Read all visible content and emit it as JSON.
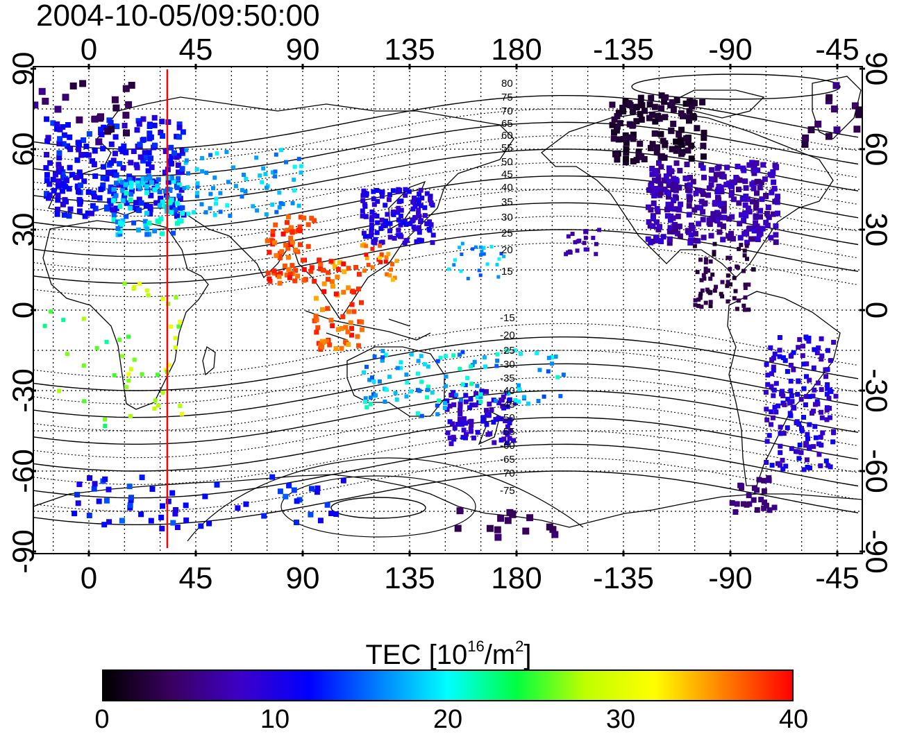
{
  "title": "2004-10-05/09:50:00",
  "map": {
    "top_lon_labels": [
      "0",
      "45",
      "90",
      "135",
      "180",
      "-135",
      "-90",
      "-45"
    ],
    "bottom_lon_labels": [
      "0",
      "45",
      "90",
      "135",
      "180",
      "-135",
      "-90",
      "-45"
    ],
    "left_lat_labels": [
      "90",
      "60",
      "30",
      "0",
      "-30",
      "-60",
      "-90"
    ],
    "right_lat_labels": [
      "90",
      "60",
      "30",
      "0",
      "-30",
      "-60",
      "-90"
    ],
    "north_contour_labels": [
      "80",
      "75",
      "70",
      "65",
      "60",
      "55",
      "50",
      "45",
      "40",
      "35",
      "30",
      "25",
      "20",
      "15"
    ],
    "south_contour_labels": [
      "-15",
      "-20",
      "-25",
      "-30",
      "-35",
      "-40",
      "-45",
      "-50",
      "-55",
      "-60",
      "-65",
      "-70",
      "-75"
    ],
    "marker_longitude": 33,
    "colors": {
      "marker": "#ff0000"
    }
  },
  "colorbar": {
    "title_main": "TEC  [10",
    "title_sup1": "16",
    "title_mid": "/m",
    "title_sup2": "2",
    "title_end": "]",
    "ticks": [
      "0",
      "10",
      "20",
      "30",
      "40"
    ],
    "tick_values": [
      0,
      10,
      20,
      30,
      40
    ],
    "range": [
      0,
      40
    ],
    "colors": [
      "#000000",
      "#3a0060",
      "#3c00c8",
      "#0000ff",
      "#0080ff",
      "#00ffff",
      "#00ff40",
      "#c0ff00",
      "#ffff00",
      "#ff8000",
      "#ff0000"
    ]
  }
}
